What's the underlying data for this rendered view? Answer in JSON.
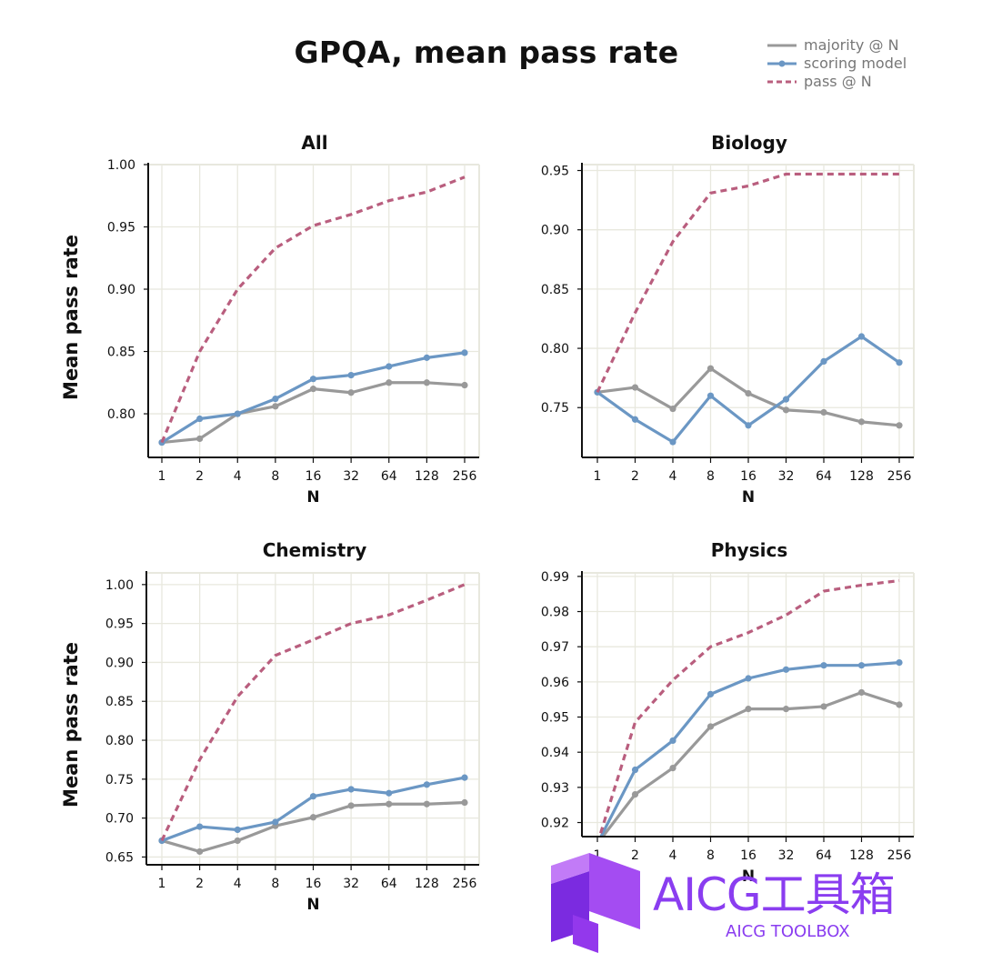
{
  "title": "GPQA, mean pass rate",
  "legend": [
    {
      "label": "majority @ N",
      "color": "#999999",
      "style": "solid-marker"
    },
    {
      "label": "scoring model",
      "color": "#6b97c4",
      "style": "solid-marker"
    },
    {
      "label": "pass @ N",
      "color": "#b95e7e",
      "style": "dashed"
    }
  ],
  "colors": {
    "majority": "#999999",
    "scoring": "#6b97c4",
    "pass": "#b95e7e",
    "grid": "#e8e8de",
    "axis": "#111111"
  },
  "watermark": {
    "main": "AICG工具箱",
    "sub": "AICG TOOLBOX",
    "color": "#8a3df0"
  },
  "chart_data": [
    {
      "type": "line",
      "title": "All",
      "xlabel": "N",
      "ylabel": "Mean pass rate",
      "categories": [
        "1",
        "2",
        "4",
        "8",
        "16",
        "32",
        "64",
        "128",
        "256"
      ],
      "ylim": [
        0.765,
        1.0
      ],
      "yticks": [
        "0.80",
        "0.85",
        "0.90",
        "0.95",
        "1.00"
      ],
      "grid": true,
      "series": [
        {
          "name": "majority @ N",
          "values": [
            0.777,
            0.78,
            0.8,
            0.806,
            0.82,
            0.817,
            0.825,
            0.825,
            0.823
          ]
        },
        {
          "name": "scoring model",
          "values": [
            0.777,
            0.796,
            0.8,
            0.812,
            0.828,
            0.831,
            0.838,
            0.845,
            0.849
          ]
        },
        {
          "name": "pass @ N",
          "values": [
            0.777,
            0.85,
            0.9,
            0.933,
            0.951,
            0.96,
            0.971,
            0.978,
            0.99
          ]
        }
      ]
    },
    {
      "type": "line",
      "title": "Biology",
      "xlabel": "N",
      "ylabel": "",
      "categories": [
        "1",
        "2",
        "4",
        "8",
        "16",
        "32",
        "64",
        "128",
        "256"
      ],
      "ylim": [
        0.708,
        0.955
      ],
      "yticks": [
        "0.75",
        "0.80",
        "0.85",
        "0.90",
        "0.95"
      ],
      "grid": true,
      "series": [
        {
          "name": "majority @ N",
          "values": [
            0.763,
            0.767,
            0.749,
            0.783,
            0.762,
            0.748,
            0.746,
            0.738,
            0.735
          ]
        },
        {
          "name": "scoring model",
          "values": [
            0.763,
            0.74,
            0.721,
            0.76,
            0.735,
            0.757,
            0.789,
            0.81,
            0.788
          ]
        },
        {
          "name": "pass @ N",
          "values": [
            0.763,
            0.83,
            0.89,
            0.931,
            0.937,
            0.947,
            0.947,
            0.947,
            0.947
          ]
        }
      ]
    },
    {
      "type": "line",
      "title": "Chemistry",
      "xlabel": "N",
      "ylabel": "Mean pass rate",
      "categories": [
        "1",
        "2",
        "4",
        "8",
        "16",
        "32",
        "64",
        "128",
        "256"
      ],
      "ylim": [
        0.64,
        1.015
      ],
      "yticks": [
        "0.65",
        "0.70",
        "0.75",
        "0.80",
        "0.85",
        "0.90",
        "0.95",
        "1.00"
      ],
      "grid": true,
      "series": [
        {
          "name": "majority @ N",
          "values": [
            0.671,
            0.657,
            0.671,
            0.69,
            0.701,
            0.716,
            0.718,
            0.718,
            0.72
          ]
        },
        {
          "name": "scoring model",
          "values": [
            0.671,
            0.689,
            0.685,
            0.695,
            0.728,
            0.737,
            0.732,
            0.743,
            0.752
          ]
        },
        {
          "name": "pass @ N",
          "values": [
            0.671,
            0.775,
            0.856,
            0.909,
            0.929,
            0.95,
            0.961,
            0.98,
            1.0
          ]
        }
      ]
    },
    {
      "type": "line",
      "title": "Physics",
      "xlabel": "N",
      "ylabel": "",
      "categories": [
        "1",
        "2",
        "4",
        "8",
        "16",
        "32",
        "64",
        "128",
        "256"
      ],
      "ylim": [
        0.916,
        0.991
      ],
      "yticks": [
        "0.92",
        "0.93",
        "0.94",
        "0.95",
        "0.96",
        "0.97",
        "0.98",
        "0.99"
      ],
      "grid": true,
      "series": [
        {
          "name": "majority @ N",
          "values": [
            0.914,
            0.928,
            0.9355,
            0.9473,
            0.9523,
            0.9523,
            0.953,
            0.957,
            0.9535
          ]
        },
        {
          "name": "scoring model",
          "values": [
            0.914,
            0.935,
            0.9433,
            0.9565,
            0.961,
            0.9635,
            0.9647,
            0.9647,
            0.9655
          ]
        },
        {
          "name": "pass @ N",
          "values": [
            0.914,
            0.9485,
            0.9605,
            0.97,
            0.974,
            0.979,
            0.9858,
            0.9875,
            0.9888
          ]
        }
      ]
    }
  ]
}
